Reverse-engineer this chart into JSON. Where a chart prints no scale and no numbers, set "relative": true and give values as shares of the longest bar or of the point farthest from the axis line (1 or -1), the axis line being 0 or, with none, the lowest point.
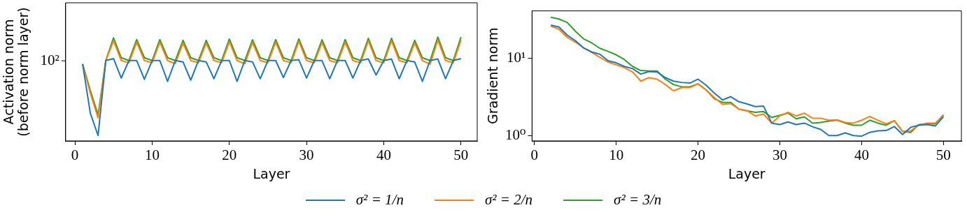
{
  "chart_data": [
    {
      "type": "line",
      "xlabel": "Layer",
      "ylabel": "Activation norm\n(before norm layer)",
      "relative": true,
      "grid": false,
      "legend": "bottom",
      "marker": "none",
      "line_style": "solid",
      "annotations": [
        "10²"
      ],
      "x": [
        1,
        2,
        3,
        4,
        5,
        6,
        7,
        8,
        9,
        10,
        11,
        12,
        13,
        14,
        15,
        16,
        17,
        18,
        19,
        20,
        21,
        22,
        23,
        24,
        25,
        26,
        27,
        28,
        29,
        30,
        31,
        32,
        33,
        34,
        35,
        36,
        37,
        38,
        39,
        40,
        41,
        42,
        43,
        44,
        45,
        46,
        47,
        48,
        49,
        50
      ],
      "xlim": [
        -1.2,
        52.1
      ],
      "xticks": [
        0,
        10,
        20,
        30,
        40,
        50
      ],
      "series": [
        {
          "name": "σ² = 1/n",
          "color": "#1f77b4",
          "values": [
            0.74,
            0.266,
            0.052,
            0.774,
            0.793,
            0.606,
            0.774,
            0.774,
            0.593,
            0.774,
            0.774,
            0.574,
            0.774,
            0.761,
            0.586,
            0.774,
            0.761,
            0.599,
            0.774,
            0.774,
            0.574,
            0.774,
            0.761,
            0.599,
            0.774,
            0.774,
            0.611,
            0.774,
            0.782,
            0.606,
            0.774,
            0.774,
            0.599,
            0.774,
            0.774,
            0.606,
            0.774,
            0.789,
            0.635,
            0.774,
            0.789,
            0.599,
            0.774,
            0.761,
            0.574,
            0.774,
            0.789,
            0.599,
            0.774,
            0.793
          ]
        },
        {
          "name": "σ² = 2/n",
          "color": "#ff7f0e",
          "values": [
            0.74,
            0.459,
            0.222,
            0.774,
            0.964,
            0.774,
            0.753,
            0.951,
            0.774,
            0.753,
            0.951,
            0.774,
            0.744,
            0.943,
            0.774,
            0.753,
            0.943,
            0.774,
            0.753,
            0.956,
            0.774,
            0.744,
            0.948,
            0.774,
            0.753,
            0.951,
            0.774,
            0.753,
            0.959,
            0.774,
            0.753,
            0.948,
            0.774,
            0.753,
            0.951,
            0.774,
            0.753,
            0.964,
            0.774,
            0.753,
            0.964,
            0.774,
            0.753,
            0.943,
            0.774,
            0.74,
            0.971,
            0.774,
            0.753,
            0.971
          ]
        },
        {
          "name": "σ² = 3/n",
          "color": "#2ca02c",
          "values": [
            0.74,
            0.485,
            0.251,
            0.774,
            0.993,
            0.801,
            0.774,
            0.976,
            0.801,
            0.774,
            0.976,
            0.801,
            0.774,
            0.969,
            0.801,
            0.774,
            0.969,
            0.801,
            0.774,
            0.981,
            0.801,
            0.774,
            0.974,
            0.801,
            0.774,
            0.976,
            0.801,
            0.774,
            0.983,
            0.801,
            0.774,
            0.974,
            0.801,
            0.774,
            0.976,
            0.801,
            0.774,
            0.988,
            0.801,
            0.774,
            0.988,
            0.801,
            0.774,
            0.969,
            0.801,
            0.774,
            1.0,
            0.801,
            0.774,
            1.0
          ]
        }
      ]
    },
    {
      "type": "line",
      "xlabel": "Layer",
      "ylabel": "Gradient norm",
      "log": "y",
      "grid": false,
      "legend": "bottom",
      "marker": "none",
      "line_style": "solid",
      "x": [
        2,
        3,
        4,
        5,
        6,
        7,
        8,
        9,
        10,
        11,
        12,
        13,
        14,
        15,
        16,
        17,
        18,
        19,
        20,
        21,
        22,
        23,
        24,
        25,
        26,
        27,
        28,
        29,
        30,
        31,
        32,
        33,
        34,
        35,
        36,
        37,
        38,
        39,
        40,
        41,
        42,
        43,
        44,
        45,
        46,
        47,
        48,
        49,
        50
      ],
      "xlim": [
        -0.3,
        52.2
      ],
      "xticks": [
        0,
        10,
        20,
        30,
        40,
        50
      ],
      "ylim": [
        0.85,
        41.7
      ],
      "yticks": [
        {
          "value": 1,
          "label": "10⁰"
        },
        {
          "value": 10,
          "label": "10¹"
        }
      ],
      "series": [
        {
          "name": "σ² = 1/n",
          "color": "#1f77b4",
          "values": [
            27.2,
            25.7,
            20.2,
            17.1,
            13.8,
            12.2,
            11.4,
            9.4,
            8.8,
            7.9,
            7.4,
            6.3,
            6.8,
            6.7,
            5.66,
            5.1,
            4.9,
            4.8,
            5.4,
            4.5,
            3.55,
            2.9,
            3.2,
            2.75,
            2.57,
            2.38,
            2.42,
            1.45,
            1.39,
            1.5,
            1.39,
            1.45,
            1.3,
            1.2,
            1.0,
            1.0,
            1.08,
            1.0,
            0.98,
            1.1,
            1.15,
            1.16,
            1.31,
            1.03,
            1.28,
            1.36,
            1.39,
            1.33,
            1.75
          ]
        },
        {
          "name": "σ² = 2/n",
          "color": "#ff7f0e",
          "values": [
            26.5,
            24,
            18.9,
            16.4,
            13.8,
            12,
            10.4,
            9.0,
            8.3,
            7.6,
            6.7,
            5.1,
            5.66,
            5.4,
            4.6,
            3.8,
            4.2,
            4.2,
            4.7,
            3.9,
            3.1,
            2.55,
            2.6,
            2.2,
            2.1,
            1.8,
            1.9,
            1.45,
            1.8,
            2.0,
            1.8,
            1.95,
            1.68,
            1.68,
            1.58,
            1.6,
            1.48,
            1.45,
            1.58,
            1.77,
            1.58,
            1.42,
            1.56,
            1.13,
            1.15,
            1.37,
            1.45,
            1.45,
            1.8
          ]
        },
        {
          "name": "σ² = 3/n",
          "color": "#2ca02c",
          "values": [
            34.5,
            32.7,
            29.5,
            22.7,
            18.1,
            16,
            13.6,
            12.4,
            11.2,
            9.7,
            7.9,
            7.0,
            6.9,
            6.9,
            5.4,
            4.6,
            4.3,
            4.3,
            4.7,
            3.9,
            3.0,
            2.7,
            2.7,
            2.2,
            2.1,
            2.0,
            2.05,
            1.72,
            1.83,
            1.96,
            1.65,
            1.75,
            1.45,
            1.48,
            1.54,
            1.58,
            1.45,
            1.36,
            1.36,
            1.58,
            1.45,
            1.36,
            1.56,
            1.13,
            1.1,
            1.39,
            1.42,
            1.42,
            1.85
          ]
        }
      ]
    }
  ]
}
